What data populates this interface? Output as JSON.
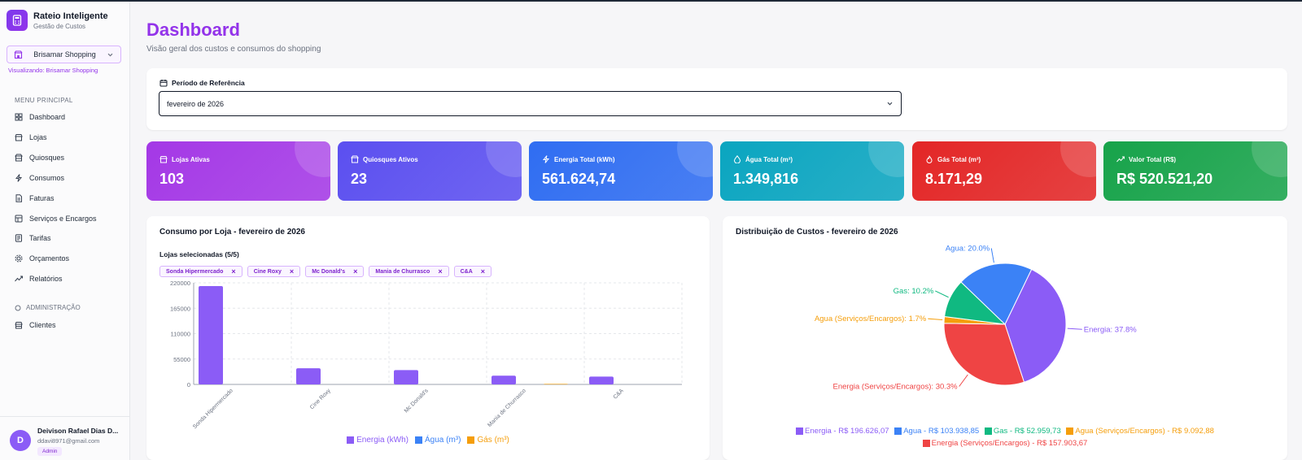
{
  "app": {
    "title": "Rateio Inteligente",
    "subtitle": "Gestão de Custos"
  },
  "tenant": {
    "selected": "Brisamar Shopping",
    "note": "Visualizando: Brisamar Shopping"
  },
  "menu": {
    "main_heading": "MENU PRINCIPAL",
    "items": [
      {
        "label": "Dashboard",
        "icon": "dashboard-icon"
      },
      {
        "label": "Lojas",
        "icon": "store-icon"
      },
      {
        "label": "Quiosques",
        "icon": "kiosk-icon"
      },
      {
        "label": "Consumos",
        "icon": "bolt-icon"
      },
      {
        "label": "Faturas",
        "icon": "invoice-icon"
      },
      {
        "label": "Serviços e Encargos",
        "icon": "services-icon"
      },
      {
        "label": "Tarifas",
        "icon": "tariff-icon"
      },
      {
        "label": "Orçamentos",
        "icon": "budget-icon"
      },
      {
        "label": "Relatórios",
        "icon": "trend-icon"
      }
    ],
    "admin_heading": "ADMINISTRAÇÃO",
    "admin_items": [
      {
        "label": "Clientes",
        "icon": "clients-icon"
      }
    ]
  },
  "user": {
    "initial": "D",
    "name": "Deivison Rafael Dias D...",
    "email": "ddavi8971@gmail.com",
    "role": "Admin"
  },
  "page": {
    "title": "Dashboard",
    "subtitle": "Visão geral dos custos e consumos do shopping"
  },
  "period": {
    "label": "Período de Referência",
    "value": "fevereiro de 2026"
  },
  "kpis": [
    {
      "label": "Lojas Ativas",
      "value": "103",
      "color": "#a438e6",
      "icon": "store-icon"
    },
    {
      "label": "Quiosques Ativos",
      "value": "23",
      "color": "#5b4ff0",
      "icon": "kiosk-icon"
    },
    {
      "label": "Energia Total (kWh)",
      "value": "561.624,74",
      "color": "#2f6df2",
      "icon": "bolt-icon"
    },
    {
      "label": "Água Total (m³)",
      "value": "1.349,816",
      "color": "#0aa5c0",
      "icon": "water-icon"
    },
    {
      "label": "Gás Total (m³)",
      "value": "8.171,29",
      "color": "#e32626",
      "icon": "flame-icon"
    },
    {
      "label": "Valor Total (R$)",
      "value": "R$ 520.521,20",
      "color": "#17a34a",
      "icon": "trend-icon"
    }
  ],
  "consumption": {
    "title": "Consumo por Loja - fevereiro de 2026",
    "selected_label": "Lojas selecionadas (5/5)",
    "chips": [
      "Sonda Hipermercado",
      "Cine Roxy",
      "Mc Donald's",
      "Mania de Churrasco",
      "C&A"
    ],
    "legend": [
      {
        "label": "Energia (kWh)",
        "color": "#8b5cf6"
      },
      {
        "label": "Água (m³)",
        "color": "#3b82f6"
      },
      {
        "label": "Gás (m³)",
        "color": "#f59e0b"
      }
    ]
  },
  "distribution": {
    "title": "Distribuição de Custos - fevereiro de 2026",
    "legend_row1": [
      {
        "label": "Energia - R$ 196.626,07",
        "color": "#8b5cf6"
      },
      {
        "label": "Agua - R$ 103.938,85",
        "color": "#3b82f6"
      },
      {
        "label": "Gas - R$ 52.959,73",
        "color": "#10b981"
      },
      {
        "label": "Agua (Serviços/Encargos) - R$ 9.092,88",
        "color": "#f59e0b"
      }
    ],
    "legend_row2": [
      {
        "label": "Energia (Serviços/Encargos) - R$ 157.903,67",
        "color": "#ef4444"
      }
    ]
  },
  "chart_data": [
    {
      "type": "bar",
      "title": "Consumo por Loja - fevereiro de 2026",
      "categories": [
        "Sonda Hipermercado",
        "Cine Roxy",
        "Mc Donald's",
        "Mania de Churrasco",
        "C&A"
      ],
      "series": [
        {
          "name": "Energia (kWh)",
          "color": "#8b5cf6",
          "values": [
            213000,
            35000,
            31000,
            19000,
            17000
          ]
        },
        {
          "name": "Água (m³)",
          "color": "#3b82f6",
          "values": [
            0,
            0,
            0,
            0,
            0
          ]
        },
        {
          "name": "Gás (m³)",
          "color": "#f59e0b",
          "values": [
            0,
            0,
            0,
            1200,
            0
          ]
        }
      ],
      "yticks": [
        "0",
        "55000",
        "110000",
        "165000",
        "220000"
      ],
      "ylim": [
        0,
        220000
      ],
      "grid": true,
      "legend": "bottom"
    },
    {
      "type": "pie",
      "title": "Distribuição de Custos - fevereiro de 2026",
      "slices": [
        {
          "name": "Energia",
          "value": 196626.07,
          "label": "Energia: 37.8%",
          "color": "#8b5cf6"
        },
        {
          "name": "Energia (Serviços/Encargos)",
          "value": 157903.67,
          "label": "Energia (Serviços/Encargos): 30.3%",
          "color": "#ef4444"
        },
        {
          "name": "Agua (Serviços/Encargos)",
          "value": 9092.88,
          "label": "Agua (Serviços/Encargos): 1.7%",
          "color": "#f59e0b"
        },
        {
          "name": "Gas",
          "value": 52959.73,
          "label": "Gas: 10.2%",
          "color": "#10b981"
        },
        {
          "name": "Agua",
          "value": 103938.85,
          "label": "Agua: 20.0%",
          "color": "#3b82f6"
        }
      ],
      "legend": "bottom"
    }
  ]
}
